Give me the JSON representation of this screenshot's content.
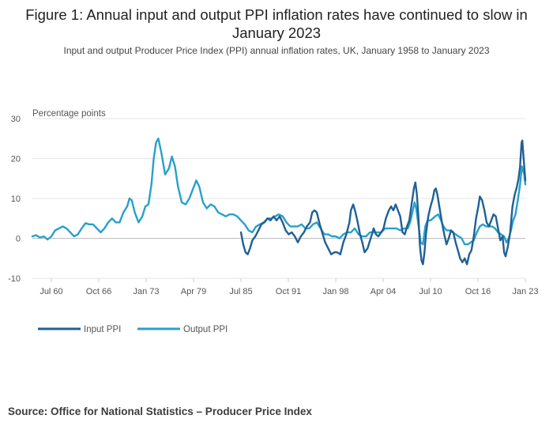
{
  "title": "Figure 1: Annual input and output PPI inflation rates have continued to slow in January 2023",
  "subtitle": "Input and output Producer Price Index (PPI) annual inflation rates, UK, January 1958 to January 2023",
  "source": "Source: Office for National Statistics – Producer Price Index",
  "colors": {
    "input_ppi": "#206095",
    "output_ppi": "#27a0cc",
    "grid": "#e6e6e6",
    "zero_line": "#bcbcbc"
  },
  "chart_data": {
    "type": "line",
    "ylabel": "Percentage points",
    "ylim": [
      -10,
      30
    ],
    "y_ticks": [
      30,
      20,
      10,
      0,
      -10
    ],
    "xlim": [
      1958.0,
      2023.0
    ],
    "x_ticks": [
      {
        "label": "Jul 60",
        "year": 1960.5
      },
      {
        "label": "Oct 66",
        "year": 1966.75
      },
      {
        "label": "Jan 73",
        "year": 1973.0
      },
      {
        "label": "Apr 79",
        "year": 1979.25
      },
      {
        "label": "Jul 85",
        "year": 1985.5
      },
      {
        "label": "Oct 91",
        "year": 1991.75
      },
      {
        "label": "Jan 98",
        "year": 1998.0
      },
      {
        "label": "Apr 04",
        "year": 2004.25
      },
      {
        "label": "Jul 10",
        "year": 2010.5
      },
      {
        "label": "Oct 16",
        "year": 2016.75
      },
      {
        "label": "Jan 23",
        "year": 2023.0
      }
    ],
    "legend_position": "bottom-left",
    "grid": true,
    "series": [
      {
        "name": "Input PPI",
        "color": "#206095",
        "points": [
          [
            1985.5,
            1.5
          ],
          [
            1985.8,
            -1.5
          ],
          [
            1986.1,
            -3.5
          ],
          [
            1986.4,
            -4.0
          ],
          [
            1986.7,
            -2.5
          ],
          [
            1987.0,
            -0.5
          ],
          [
            1987.4,
            0.5
          ],
          [
            1987.8,
            2.0
          ],
          [
            1988.2,
            3.5
          ],
          [
            1988.6,
            4.0
          ],
          [
            1989.0,
            5.0
          ],
          [
            1989.4,
            4.5
          ],
          [
            1989.8,
            5.5
          ],
          [
            1990.2,
            4.5
          ],
          [
            1990.6,
            5.5
          ],
          [
            1991.0,
            4.0
          ],
          [
            1991.4,
            2.0
          ],
          [
            1991.8,
            1.0
          ],
          [
            1992.2,
            1.5
          ],
          [
            1992.6,
            0.5
          ],
          [
            1993.0,
            -1.0
          ],
          [
            1993.4,
            0.5
          ],
          [
            1993.8,
            1.5
          ],
          [
            1994.2,
            3.0
          ],
          [
            1994.6,
            4.0
          ],
          [
            1994.9,
            6.5
          ],
          [
            1995.2,
            7.0
          ],
          [
            1995.5,
            6.5
          ],
          [
            1995.9,
            3.5
          ],
          [
            1996.2,
            1.5
          ],
          [
            1996.6,
            -1.0
          ],
          [
            1997.0,
            -2.5
          ],
          [
            1997.4,
            -4.0
          ],
          [
            1997.8,
            -3.5
          ],
          [
            1998.2,
            -3.5
          ],
          [
            1998.6,
            -4.0
          ],
          [
            1999.0,
            -1.0
          ],
          [
            1999.4,
            1.0
          ],
          [
            1999.8,
            4.0
          ],
          [
            2000.0,
            7.0
          ],
          [
            2000.3,
            8.5
          ],
          [
            2000.6,
            6.5
          ],
          [
            2000.9,
            4.0
          ],
          [
            2001.2,
            1.0
          ],
          [
            2001.5,
            -1.0
          ],
          [
            2001.8,
            -3.5
          ],
          [
            2002.2,
            -2.5
          ],
          [
            2002.6,
            0.0
          ],
          [
            2003.0,
            2.5
          ],
          [
            2003.3,
            1.0
          ],
          [
            2003.6,
            0.5
          ],
          [
            2004.0,
            1.5
          ],
          [
            2004.3,
            2.5
          ],
          [
            2004.6,
            5.0
          ],
          [
            2005.0,
            7.0
          ],
          [
            2005.3,
            8.0
          ],
          [
            2005.6,
            7.0
          ],
          [
            2005.9,
            8.5
          ],
          [
            2006.2,
            7.0
          ],
          [
            2006.5,
            5.5
          ],
          [
            2006.8,
            1.5
          ],
          [
            2007.1,
            1.0
          ],
          [
            2007.4,
            3.0
          ],
          [
            2007.7,
            4.5
          ],
          [
            2008.0,
            8.5
          ],
          [
            2008.3,
            12.5
          ],
          [
            2008.5,
            14.0
          ],
          [
            2008.7,
            11.0
          ],
          [
            2008.9,
            5.5
          ],
          [
            2009.1,
            -2.0
          ],
          [
            2009.3,
            -5.5
          ],
          [
            2009.5,
            -6.5
          ],
          [
            2009.7,
            -3.5
          ],
          [
            2009.9,
            1.0
          ],
          [
            2010.2,
            5.5
          ],
          [
            2010.5,
            8.0
          ],
          [
            2010.8,
            10.0
          ],
          [
            2011.0,
            12.0
          ],
          [
            2011.2,
            12.5
          ],
          [
            2011.4,
            11.0
          ],
          [
            2011.7,
            7.5
          ],
          [
            2012.0,
            4.0
          ],
          [
            2012.3,
            1.0
          ],
          [
            2012.6,
            -1.5
          ],
          [
            2012.9,
            0.0
          ],
          [
            2013.2,
            2.0
          ],
          [
            2013.5,
            1.5
          ],
          [
            2013.8,
            -1.0
          ],
          [
            2014.1,
            -3.0
          ],
          [
            2014.4,
            -5.0
          ],
          [
            2014.7,
            -6.0
          ],
          [
            2015.0,
            -5.0
          ],
          [
            2015.3,
            -6.5
          ],
          [
            2015.6,
            -4.0
          ],
          [
            2015.9,
            -3.0
          ],
          [
            2016.2,
            0.5
          ],
          [
            2016.5,
            5.0
          ],
          [
            2016.8,
            8.0
          ],
          [
            2017.0,
            10.5
          ],
          [
            2017.3,
            9.5
          ],
          [
            2017.6,
            7.0
          ],
          [
            2017.9,
            4.0
          ],
          [
            2018.2,
            3.0
          ],
          [
            2018.5,
            4.5
          ],
          [
            2018.8,
            6.0
          ],
          [
            2019.1,
            5.5
          ],
          [
            2019.4,
            2.5
          ],
          [
            2019.7,
            -0.5
          ],
          [
            2020.0,
            0.5
          ],
          [
            2020.2,
            -3.5
          ],
          [
            2020.4,
            -4.5
          ],
          [
            2020.7,
            -2.0
          ],
          [
            2021.0,
            1.5
          ],
          [
            2021.3,
            8.0
          ],
          [
            2021.6,
            11.0
          ],
          [
            2021.9,
            13.0
          ],
          [
            2022.1,
            15.0
          ],
          [
            2022.3,
            18.0
          ],
          [
            2022.5,
            24.0
          ],
          [
            2022.6,
            24.5
          ],
          [
            2022.75,
            20.5
          ],
          [
            2022.9,
            17.0
          ],
          [
            2023.0,
            14.5
          ]
        ]
      },
      {
        "name": "Output PPI",
        "color": "#27a0cc",
        "points": [
          [
            1958.0,
            0.5
          ],
          [
            1958.5,
            0.8
          ],
          [
            1959.0,
            0.2
          ],
          [
            1959.5,
            0.5
          ],
          [
            1960.0,
            -0.3
          ],
          [
            1960.5,
            0.5
          ],
          [
            1961.0,
            2.0
          ],
          [
            1961.5,
            2.5
          ],
          [
            1962.0,
            3.0
          ],
          [
            1962.5,
            2.5
          ],
          [
            1963.0,
            1.5
          ],
          [
            1963.5,
            0.5
          ],
          [
            1964.0,
            1.0
          ],
          [
            1964.5,
            2.5
          ],
          [
            1965.0,
            3.8
          ],
          [
            1965.5,
            3.5
          ],
          [
            1966.0,
            3.5
          ],
          [
            1966.5,
            2.5
          ],
          [
            1967.0,
            1.5
          ],
          [
            1967.5,
            2.5
          ],
          [
            1968.0,
            4.0
          ],
          [
            1968.5,
            5.0
          ],
          [
            1969.0,
            4.0
          ],
          [
            1969.5,
            4.0
          ],
          [
            1970.0,
            6.5
          ],
          [
            1970.5,
            8.0
          ],
          [
            1970.8,
            10.0
          ],
          [
            1971.1,
            9.5
          ],
          [
            1971.5,
            6.5
          ],
          [
            1972.0,
            4.0
          ],
          [
            1972.5,
            5.5
          ],
          [
            1972.9,
            8.0
          ],
          [
            1973.3,
            8.5
          ],
          [
            1973.7,
            13.5
          ],
          [
            1974.0,
            20.0
          ],
          [
            1974.3,
            24.0
          ],
          [
            1974.6,
            25.0
          ],
          [
            1975.0,
            21.5
          ],
          [
            1975.5,
            16.0
          ],
          [
            1976.0,
            17.5
          ],
          [
            1976.4,
            20.5
          ],
          [
            1976.8,
            18.0
          ],
          [
            1977.2,
            13.0
          ],
          [
            1977.7,
            9.0
          ],
          [
            1978.2,
            8.5
          ],
          [
            1978.7,
            10.0
          ],
          [
            1979.2,
            12.5
          ],
          [
            1979.6,
            14.5
          ],
          [
            1980.0,
            13.0
          ],
          [
            1980.5,
            9.0
          ],
          [
            1981.0,
            7.5
          ],
          [
            1981.5,
            8.5
          ],
          [
            1982.0,
            8.0
          ],
          [
            1982.5,
            6.5
          ],
          [
            1983.0,
            6.0
          ],
          [
            1983.5,
            5.5
          ],
          [
            1984.0,
            6.0
          ],
          [
            1984.5,
            6.0
          ],
          [
            1985.0,
            5.5
          ],
          [
            1985.5,
            4.5
          ],
          [
            1986.0,
            3.5
          ],
          [
            1986.5,
            2.0
          ],
          [
            1987.0,
            1.5
          ],
          [
            1987.5,
            3.0
          ],
          [
            1988.0,
            3.5
          ],
          [
            1988.5,
            4.0
          ],
          [
            1989.0,
            5.0
          ],
          [
            1989.5,
            5.0
          ],
          [
            1990.0,
            5.5
          ],
          [
            1990.5,
            6.0
          ],
          [
            1991.0,
            5.5
          ],
          [
            1991.5,
            4.0
          ],
          [
            1992.0,
            3.0
          ],
          [
            1992.5,
            3.0
          ],
          [
            1993.0,
            3.0
          ],
          [
            1993.5,
            3.5
          ],
          [
            1994.0,
            2.5
          ],
          [
            1994.5,
            2.5
          ],
          [
            1995.0,
            3.5
          ],
          [
            1995.5,
            4.0
          ],
          [
            1996.0,
            2.5
          ],
          [
            1996.5,
            1.0
          ],
          [
            1997.0,
            1.0
          ],
          [
            1997.5,
            0.5
          ],
          [
            1998.0,
            0.5
          ],
          [
            1998.5,
            0.0
          ],
          [
            1999.0,
            1.0
          ],
          [
            1999.5,
            1.5
          ],
          [
            2000.0,
            1.5
          ],
          [
            2000.5,
            2.5
          ],
          [
            2001.0,
            1.0
          ],
          [
            2001.5,
            0.5
          ],
          [
            2002.0,
            0.5
          ],
          [
            2002.5,
            1.5
          ],
          [
            2003.0,
            1.5
          ],
          [
            2003.5,
            1.5
          ],
          [
            2004.0,
            1.5
          ],
          [
            2004.5,
            2.5
          ],
          [
            2005.0,
            2.5
          ],
          [
            2005.5,
            2.5
          ],
          [
            2006.0,
            2.5
          ],
          [
            2006.5,
            2.0
          ],
          [
            2007.0,
            2.5
          ],
          [
            2007.5,
            2.5
          ],
          [
            2007.8,
            4.0
          ],
          [
            2008.1,
            6.5
          ],
          [
            2008.4,
            9.0
          ],
          [
            2008.6,
            7.5
          ],
          [
            2008.9,
            3.5
          ],
          [
            2009.2,
            -1.0
          ],
          [
            2009.5,
            -1.5
          ],
          [
            2009.8,
            3.0
          ],
          [
            2010.1,
            4.5
          ],
          [
            2010.5,
            4.5
          ],
          [
            2010.8,
            5.0
          ],
          [
            2011.1,
            5.5
          ],
          [
            2011.5,
            6.0
          ],
          [
            2011.9,
            4.5
          ],
          [
            2012.2,
            3.0
          ],
          [
            2012.6,
            2.0
          ],
          [
            2013.0,
            2.0
          ],
          [
            2013.4,
            1.5
          ],
          [
            2013.8,
            1.0
          ],
          [
            2014.2,
            0.5
          ],
          [
            2014.6,
            0.0
          ],
          [
            2015.0,
            -1.5
          ],
          [
            2015.4,
            -1.5
          ],
          [
            2015.8,
            -1.0
          ],
          [
            2016.2,
            -0.5
          ],
          [
            2016.6,
            1.5
          ],
          [
            2017.0,
            3.0
          ],
          [
            2017.4,
            3.5
          ],
          [
            2017.8,
            3.0
          ],
          [
            2018.2,
            3.0
          ],
          [
            2018.6,
            3.0
          ],
          [
            2019.0,
            2.5
          ],
          [
            2019.4,
            1.5
          ],
          [
            2019.8,
            1.0
          ],
          [
            2020.2,
            0.5
          ],
          [
            2020.5,
            -1.0
          ],
          [
            2020.8,
            0.0
          ],
          [
            2021.1,
            2.0
          ],
          [
            2021.4,
            4.5
          ],
          [
            2021.7,
            6.0
          ],
          [
            2022.0,
            9.5
          ],
          [
            2022.3,
            13.5
          ],
          [
            2022.55,
            18.0
          ],
          [
            2022.7,
            17.0
          ],
          [
            2022.85,
            16.0
          ],
          [
            2023.0,
            13.5
          ]
        ]
      }
    ]
  }
}
